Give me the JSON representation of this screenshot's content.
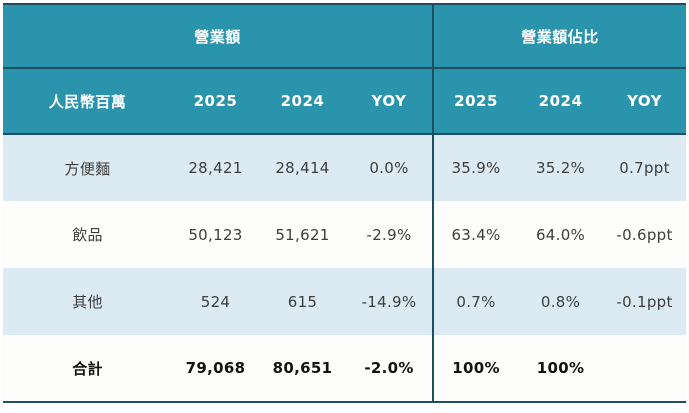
{
  "table": {
    "colors": {
      "header_bg": "#2a94ad",
      "divider_line": "#1d4e61",
      "row_alt_bg": "#dcebf3",
      "row_bg": "#fdfdfb",
      "header_text": "#ffffff",
      "body_text": "#3d3d3d"
    },
    "header_groups": [
      {
        "label": "營業額"
      },
      {
        "label": "營業額佔比"
      }
    ],
    "columns": [
      "人民幣百萬",
      "2025",
      "2024",
      "YOY",
      "2025",
      "2024",
      "YOY"
    ],
    "rows": [
      {
        "label": "方便麵",
        "values": [
          "28,421",
          "28,414",
          "0.0%",
          "35.9%",
          "35.2%",
          "0.7ppt"
        ],
        "bold": false
      },
      {
        "label": "飲品",
        "values": [
          "50,123",
          "51,621",
          "-2.9%",
          "63.4%",
          "64.0%",
          "-0.6ppt"
        ],
        "bold": false
      },
      {
        "label": "其他",
        "values": [
          "524",
          "615",
          "-14.9%",
          "0.7%",
          "0.8%",
          "-0.1ppt"
        ],
        "bold": false
      },
      {
        "label": "合計",
        "values": [
          "79,068",
          "80,651",
          "-2.0%",
          "100%",
          "100%",
          ""
        ],
        "bold": true
      }
    ]
  }
}
